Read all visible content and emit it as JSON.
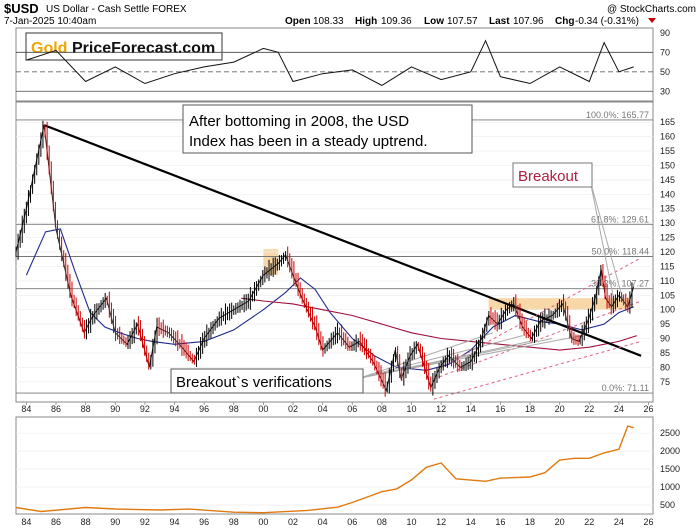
{
  "header": {
    "symbol": "$USD",
    "description": "US Dollar - Cash Settle FOREX",
    "date": "7-Jan-2025 10:40am",
    "watermark": "@ StockCharts.com",
    "quote": {
      "open_label": "Open",
      "open": "108.33",
      "high_label": "High",
      "high": "109.36",
      "low_label": "Low",
      "low": "107.57",
      "last_label": "Last",
      "last": "107.96",
      "chg_label": "Chg",
      "chg": "-0.34 (-0.31%)"
    }
  },
  "logo": {
    "gold": "Gold",
    "rest": "PriceForecast.com"
  },
  "annotations": {
    "main_text": "After bottoming in 2008, the USD Index has been in a steady uptrend.",
    "main_line1": "After bottoming in 2008, the USD",
    "main_line2": "Index has been in a steady uptrend.",
    "breakout": "Breakout",
    "verifications": "Breakout`s verifications"
  },
  "colors": {
    "price_up": "#000000",
    "price_down": "#cc0000",
    "ma_short": "#1f2a8c",
    "ma_long": "#a0103a",
    "trend_channel": "#e0607a",
    "highlight": "#f5c27a",
    "bottom_series": "#e07a10",
    "breakout_text": "#b02040"
  },
  "chart_data": [
    {
      "type": "line",
      "panel": "indicator",
      "y_ticks": [
        90,
        70,
        50,
        30
      ],
      "ylim": [
        20,
        95
      ],
      "reference_lines": [
        70,
        50,
        30
      ],
      "x": [
        1984,
        1986,
        1988,
        1990,
        1992,
        1994,
        1996,
        1998,
        2000,
        2001,
        2002,
        2004,
        2006,
        2008,
        2010,
        2012,
        2014,
        2015,
        2016,
        2018,
        2020,
        2022,
        2023,
        2024,
        2025
      ],
      "values": [
        62,
        72,
        40,
        55,
        38,
        48,
        55,
        60,
        74,
        70,
        40,
        48,
        52,
        36,
        55,
        42,
        50,
        82,
        45,
        38,
        55,
        40,
        80,
        50,
        55
      ]
    },
    {
      "type": "line",
      "panel": "price",
      "title": "US Dollar - Cash Settle FOREX",
      "x_ticks": [
        "84",
        "86",
        "88",
        "90",
        "92",
        "94",
        "96",
        "98",
        "00",
        "02",
        "04",
        "06",
        "08",
        "10",
        "12",
        "14",
        "16",
        "18",
        "20",
        "22",
        "24",
        "26"
      ],
      "y_ticks": [
        75,
        80,
        85,
        90,
        95,
        100,
        105,
        110,
        115,
        120,
        125,
        130,
        135,
        140,
        145,
        150,
        155,
        160,
        165
      ],
      "ylim": [
        68,
        172
      ],
      "xlim": [
        1983.3,
        2026.3
      ],
      "series": [
        {
          "role": "price",
          "x": [
            1983.3,
            1984,
            1985.2,
            1986,
            1987,
            1987.9,
            1988.5,
            1989.4,
            1990,
            1990.8,
            1991.5,
            1992.3,
            1992.8,
            1993.6,
            1994.5,
            1995.3,
            1996,
            1997,
            1998,
            1999,
            2000,
            2001,
            2001.5,
            2002,
            2002.6,
            2003.5,
            2004,
            2005,
            2005.8,
            2006.5,
            2007.4,
            2008.3,
            2008.9,
            2009.3,
            2009.9,
            2010.4,
            2011.3,
            2011.9,
            2012.5,
            2013.3,
            2014,
            2014.6,
            2015.2,
            2015.8,
            2016.4,
            2016.9,
            2017.5,
            2018.1,
            2018.7,
            2019.5,
            2020.2,
            2020.8,
            2021.3,
            2021.9,
            2022.4,
            2022.8,
            2023.1,
            2023.5,
            2024,
            2024.6,
            2025
          ],
          "values": [
            120,
            135,
            164,
            128,
            105,
            92,
            98,
            104,
            92,
            88,
            95,
            80,
            94,
            92,
            87,
            82,
            90,
            97,
            100,
            103,
            112,
            116,
            119,
            112,
            104,
            94,
            86,
            92,
            87,
            89,
            82,
            72,
            86,
            76,
            84,
            88,
            73,
            80,
            84,
            80,
            82,
            88,
            98,
            95,
            100,
            102,
            94,
            90,
            96,
            98,
            102,
            90,
            89,
            96,
            104,
            114,
            104,
            101,
            105,
            101,
            108
          ]
        },
        {
          "role": "moving_average_short",
          "x": [
            1984,
            1985.3,
            1986.3,
            1987.3,
            1988.3,
            1989.3,
            1990.3,
            1991.5,
            1992.5,
            1994,
            1996,
            1998,
            2000,
            2001.5,
            2002.5,
            2003.5,
            2004.5,
            2006,
            2007.5,
            2009,
            2011,
            2012.5,
            2014,
            2015.5,
            2017,
            2018.5,
            2020,
            2021.5,
            2023,
            2024,
            2025
          ],
          "values": [
            112,
            127,
            128,
            113,
            99,
            94,
            92,
            90,
            89,
            88,
            89,
            93,
            100,
            106,
            111,
            107,
            99,
            90,
            84,
            80,
            79,
            81,
            86,
            94,
            98,
            96,
            95,
            93,
            95,
            99,
            101
          ]
        },
        {
          "role": "moving_average_long",
          "x": [
            1998.5,
            2000,
            2002,
            2004,
            2006,
            2008,
            2010,
            2012,
            2014,
            2016,
            2018,
            2020,
            2022,
            2024,
            2025.2
          ],
          "values": [
            104,
            103,
            102,
            100,
            98,
            95,
            92,
            90,
            89,
            88,
            87,
            86,
            87,
            89,
            91
          ]
        },
        {
          "role": "trendline",
          "x": [
            1985.2,
            2025.5
          ],
          "values": [
            164,
            84
          ]
        },
        {
          "role": "channel_upper",
          "x": [
            2012,
            2025.5
          ],
          "values": [
            80,
            118
          ]
        },
        {
          "role": "channel_mid",
          "x": [
            2011.5,
            2025.5
          ],
          "values": [
            76,
            103
          ]
        },
        {
          "role": "channel_lower",
          "x": [
            2011.5,
            2025.5
          ],
          "values": [
            69,
            89
          ]
        }
      ],
      "fibonacci": [
        {
          "label": "100.0%: 165.77",
          "value": 165.77
        },
        {
          "label": "61.8%: 129.61",
          "value": 129.61
        },
        {
          "label": "50.0%: 118.44",
          "value": 118.44
        },
        {
          "label": "38.2%: 107.27",
          "value": 107.27
        },
        {
          "label": "0.0%: 71.11",
          "value": 71.11
        }
      ],
      "highlight_zones": [
        {
          "x": [
            2000,
            2001
          ],
          "values": [
            112,
            121
          ]
        },
        {
          "x": [
            2015.2,
            2022.7
          ],
          "values": [
            100,
            104
          ]
        },
        {
          "x": [
            2022.7,
            2024.7
          ],
          "values": [
            100,
            104
          ]
        }
      ],
      "verification_points": [
        {
          "x": 2015.5,
          "value": 92
        },
        {
          "x": 2017.5,
          "value": 91
        },
        {
          "x": 2018,
          "value": 89
        },
        {
          "x": 2019.5,
          "value": 90
        },
        {
          "x": 2021.5,
          "value": 91
        }
      ]
    },
    {
      "type": "line",
      "panel": "bottom",
      "y_ticks": [
        500,
        1000,
        1500,
        2000,
        2500
      ],
      "ylim": [
        250,
        2950
      ],
      "x": [
        1983.3,
        1985,
        1988,
        1990,
        1993,
        1995,
        1998,
        2000,
        2003,
        2005,
        2006,
        2008,
        2009,
        2010,
        2011,
        2012,
        2013,
        2015,
        2016,
        2018,
        2019,
        2020,
        2021,
        2022,
        2023,
        2024,
        2024.6,
        2025
      ],
      "values": [
        430,
        320,
        430,
        390,
        360,
        385,
        300,
        285,
        350,
        440,
        570,
        870,
        950,
        1200,
        1550,
        1670,
        1230,
        1160,
        1250,
        1280,
        1400,
        1750,
        1800,
        1800,
        1950,
        2050,
        2700,
        2650
      ]
    }
  ]
}
